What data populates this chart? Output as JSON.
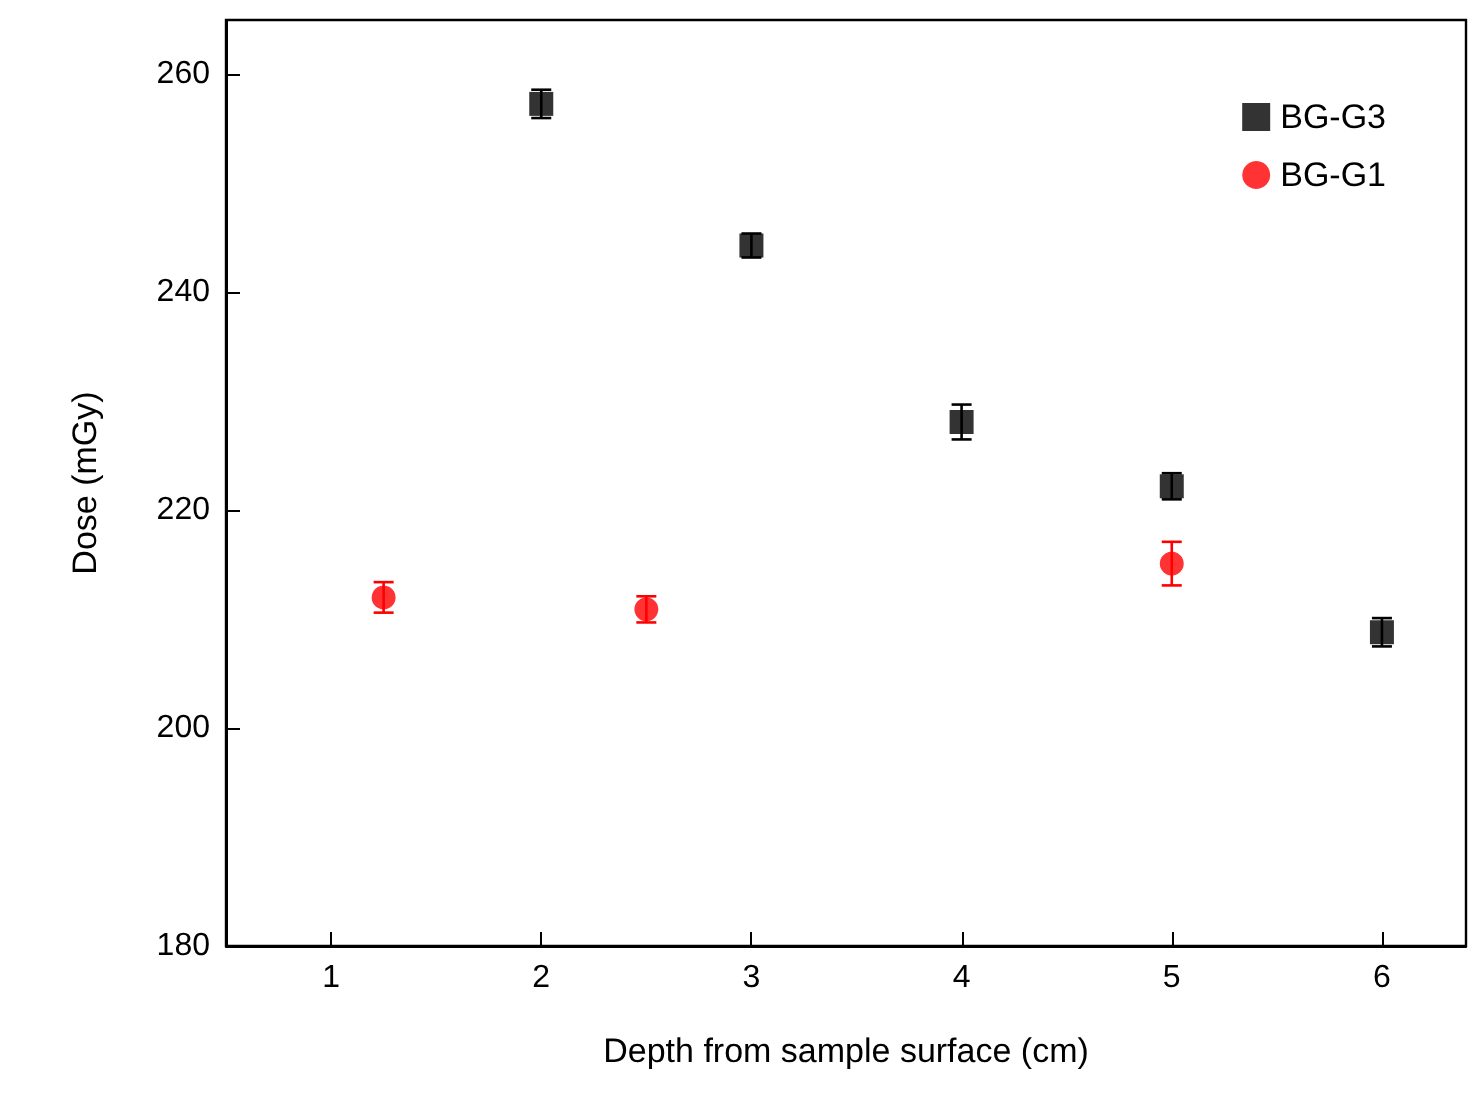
{
  "chart_data": {
    "type": "scatter",
    "xlabel": "Depth from sample surface (cm)",
    "ylabel": "Dose (mGy)",
    "xlim": [
      0.5,
      6.4
    ],
    "xticks": [
      1,
      2,
      3,
      4,
      5,
      6
    ],
    "ylim": [
      180,
      265
    ],
    "yticks": [
      180,
      200,
      220,
      240,
      260
    ],
    "grid": false,
    "legend": "top right",
    "series": [
      {
        "name": "BG-G3",
        "color": "#000000",
        "marker": "square",
        "x": [
          2,
          3,
          4,
          5,
          6
        ],
        "values": [
          257.3,
          244.3,
          228.1,
          222.2,
          208.8
        ],
        "errors": [
          1.3,
          1.1,
          1.6,
          1.2,
          1.3
        ]
      },
      {
        "name": "BG-G1",
        "color": "#ff0000",
        "marker": "circle",
        "x": [
          1.25,
          2.5,
          5
        ],
        "values": [
          212.0,
          210.9,
          215.1
        ],
        "errors": [
          1.4,
          1.2,
          2.0
        ]
      }
    ]
  }
}
